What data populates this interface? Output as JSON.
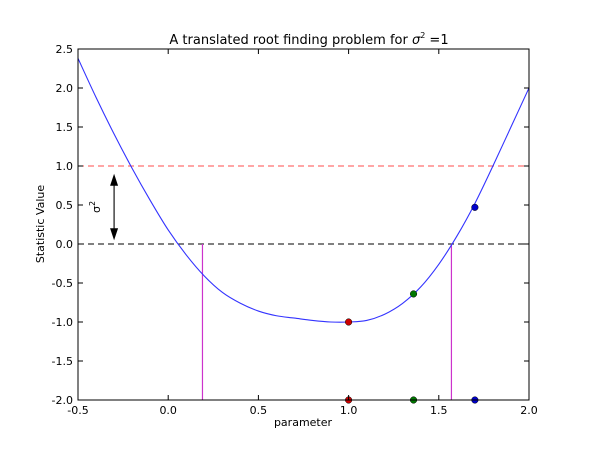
{
  "chart_data": {
    "type": "line",
    "title": "A translated root finding problem for σ² =1",
    "title_main": "A translated root finding problem for ",
    "title_sigma": "σ",
    "title_sup": "2",
    "title_rest": " =1",
    "xlabel": "parameter",
    "ylabel": "Statistic Value",
    "xlim": [
      -0.5,
      2.0
    ],
    "ylim": [
      -2.0,
      2.5
    ],
    "xticks": [
      "-0.5",
      "0.0",
      "0.5",
      "1.0",
      "1.5",
      "2.0"
    ],
    "yticks": [
      "-2.0",
      "-1.5",
      "-1.0",
      "-0.5",
      "0.0",
      "0.5",
      "1.0",
      "1.5",
      "2.0",
      "2.5"
    ],
    "grid": false,
    "series": [
      {
        "kind": "curve",
        "color": "#3333ff",
        "x": [
          -0.5,
          -0.4,
          -0.3,
          -0.2,
          -0.1,
          0.0,
          0.1,
          0.2,
          0.3,
          0.4,
          0.5,
          0.6,
          0.7,
          0.8,
          0.9,
          1.0,
          1.1,
          1.2,
          1.3,
          1.4,
          1.5,
          1.6,
          1.7,
          1.8,
          1.9,
          2.0
        ],
        "y": [
          2.38,
          1.88,
          1.41,
          0.97,
          0.56,
          0.18,
          -0.14,
          -0.41,
          -0.62,
          -0.76,
          -0.86,
          -0.92,
          -0.95,
          -0.98,
          -1.0,
          -1.0,
          -0.98,
          -0.9,
          -0.76,
          -0.55,
          -0.26,
          0.1,
          0.52,
          1.0,
          1.5,
          2.0
        ]
      }
    ],
    "hlines": [
      {
        "y": 1.0,
        "color": "#ff4d4d",
        "style": "dashed"
      },
      {
        "y": 0.0,
        "color": "#000000",
        "style": "dashed"
      }
    ],
    "vlines": [
      {
        "x": 0.19,
        "y_from": -2.0,
        "y_to": 0.0,
        "color": "#cc33cc"
      },
      {
        "x": 1.57,
        "y_from": -2.0,
        "y_to": 0.0,
        "color": "#cc33cc"
      }
    ],
    "points": [
      {
        "x": 1.0,
        "y": -1.0,
        "color": "#cc0000"
      },
      {
        "x": 1.36,
        "y": -0.64,
        "color": "#007700"
      },
      {
        "x": 1.7,
        "y": 0.47,
        "color": "#0000cc"
      },
      {
        "x": 1.0,
        "y": -2.0,
        "color": "#cc0000"
      },
      {
        "x": 1.36,
        "y": -2.0,
        "color": "#007700"
      },
      {
        "x": 1.7,
        "y": -2.0,
        "color": "#0000cc"
      }
    ],
    "annotation": {
      "label_symbol": "σ",
      "label_sup": "2",
      "arrow_x": -0.3,
      "arrow_y_from": 0.1,
      "arrow_y_to": 0.85
    }
  }
}
